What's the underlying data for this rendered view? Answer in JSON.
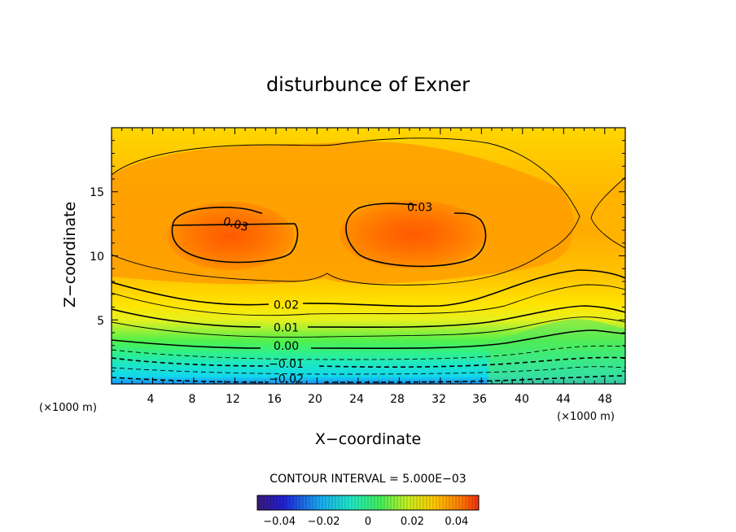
{
  "chart_data": {
    "type": "contour",
    "title": "disturbunce of Exner",
    "xlabel": "X−coordinate",
    "ylabel": "Z−coordinate",
    "x_unit": "(×1000 m)",
    "y_unit": "(×1000 m)",
    "xlim": [
      0,
      50
    ],
    "ylim": [
      0,
      20
    ],
    "x_ticks": [
      4,
      8,
      12,
      16,
      20,
      24,
      28,
      32,
      36,
      40,
      44,
      48
    ],
    "y_ticks": [
      5,
      10,
      15
    ],
    "x_tick_labels": [
      "4",
      "8",
      "12",
      "16",
      "20",
      "24",
      "28",
      "32",
      "36",
      "40",
      "44",
      "48"
    ],
    "y_tick_labels": [
      "5",
      "10",
      "15"
    ],
    "contour_interval_text": "CONTOUR INTERVAL = 5.000E−03",
    "contour_labels": [
      {
        "text": "0.03",
        "x": 12,
        "y": 12.5
      },
      {
        "text": "0.03",
        "x": 30,
        "y": 13.8
      },
      {
        "text": "0.02",
        "x": 17,
        "y": 6.2
      },
      {
        "text": "0.01",
        "x": 17,
        "y": 4.4
      },
      {
        "text": "0.00",
        "x": 17,
        "y": 3.0
      },
      {
        "text": "−0.01",
        "x": 17,
        "y": 1.6
      },
      {
        "text": "−0.02",
        "x": 17,
        "y": 0.4
      }
    ],
    "maxima": [
      {
        "x": 11.5,
        "z": 11.5
      },
      {
        "x": 29.5,
        "z": 11.5
      }
    ],
    "value_range": [
      -0.05,
      0.05
    ],
    "colorbar": {
      "ticks": [
        -0.04,
        -0.02,
        0,
        0.02,
        0.04
      ],
      "tick_labels": [
        "−0.04",
        "−0.02",
        "0",
        "0.02",
        "0.04"
      ]
    },
    "grid": false,
    "legend": "colorbar bottom-center"
  }
}
